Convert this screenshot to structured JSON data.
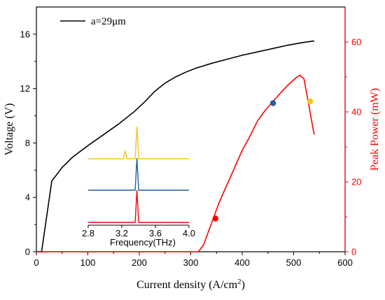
{
  "chart_data": [
    {
      "type": "line",
      "xlabel": "Current density (A/cm",
      "xlabel_sup": "2",
      "xlabel_end": ")",
      "ylabel_left": "Voltage (V)",
      "ylabel_right": "Peak Power (mW)",
      "xlim": [
        0,
        600
      ],
      "ylim_left": [
        0,
        18
      ],
      "ylim_right": [
        0,
        70
      ],
      "x_ticks": [
        0,
        100,
        200,
        300,
        400,
        500,
        600
      ],
      "y_left_ticks": [
        0,
        4,
        8,
        12,
        16
      ],
      "y_right_ticks": [
        0,
        20,
        40,
        60
      ],
      "legend": {
        "position": "top-left",
        "label": "a=29μm"
      },
      "colors": {
        "voltage": "#000000",
        "power": "#ff0000",
        "blue": "#1f5fa6",
        "yellow": "#f5c518"
      },
      "series": [
        {
          "name": "a=29μm",
          "axis": "left",
          "x": [
            10,
            20,
            30,
            50,
            70,
            100,
            130,
            160,
            190,
            210,
            230,
            250,
            270,
            290,
            310,
            340,
            370,
            400,
            430,
            460,
            490,
            520,
            540
          ],
          "y": [
            0,
            2.6,
            5.2,
            6.2,
            6.95,
            7.8,
            8.6,
            9.4,
            10.3,
            11.0,
            11.8,
            12.4,
            12.85,
            13.2,
            13.5,
            13.85,
            14.15,
            14.45,
            14.7,
            14.95,
            15.2,
            15.4,
            15.5
          ]
        },
        {
          "axis": "right",
          "x": [
            0,
            300,
            315,
            325,
            335,
            345,
            355,
            370,
            385,
            400,
            415,
            430,
            445,
            460,
            475,
            490,
            505,
            512,
            520,
            527,
            533,
            538,
            540
          ],
          "y": [
            0,
            0,
            0,
            2,
            6,
            10,
            14,
            19,
            24,
            29,
            33,
            37.5,
            40.5,
            43,
            45.5,
            47.8,
            49.8,
            50.5,
            49.5,
            44,
            39,
            35,
            33.5
          ]
        }
      ],
      "markers": [
        {
          "x": 348,
          "y": 9.5,
          "color": "red"
        },
        {
          "x": 460,
          "y": 42.5,
          "color": "blue"
        },
        {
          "x": 532,
          "y": 43,
          "color": "yellow"
        }
      ],
      "inset": {
        "type": "line",
        "xlabel": "Frequency(THz)",
        "xlim": [
          2.8,
          4.0
        ],
        "x_ticks": [
          2.8,
          3.2,
          3.6,
          4.0
        ],
        "spectra": [
          {
            "color": "yellow",
            "peaks": [
              {
                "x": 3.38,
                "h": 1.0
              },
              {
                "x": 3.24,
                "h": 0.25
              }
            ]
          },
          {
            "color": "blue",
            "peaks": [
              {
                "x": 3.38,
                "h": 1.0
              }
            ]
          },
          {
            "color": "red",
            "peaks": [
              {
                "x": 3.38,
                "h": 1.0
              }
            ]
          }
        ]
      }
    }
  ]
}
